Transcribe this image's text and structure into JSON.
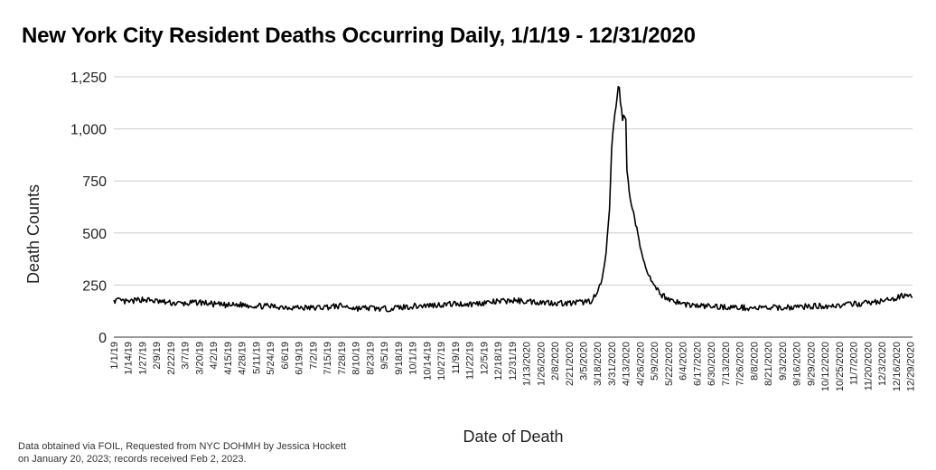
{
  "chart_data": {
    "type": "line",
    "title": "New York City Resident Deaths Occurring Daily, 1/1/19 - 12/31/2020",
    "xlabel": "Date of Death",
    "ylabel": "Death Counts",
    "ylim": [
      0,
      1250
    ],
    "yticks": [
      0,
      250,
      500,
      750,
      1000,
      1250
    ],
    "ytick_labels": [
      "0",
      "250",
      "500",
      "750",
      "1,000",
      "1,250"
    ],
    "grid": "horizontal",
    "legend": "none",
    "line_color": "#000000",
    "x_start": "1/1/19",
    "x_end": "12/31/2020",
    "x_tick_labels": [
      "1/1/19",
      "1/14/19",
      "1/27/19",
      "2/9/19",
      "2/22/19",
      "3/7/19",
      "3/20/19",
      "4/2/19",
      "4/15/19",
      "4/28/19",
      "5/11/19",
      "5/24/19",
      "6/6/19",
      "6/19/19",
      "7/2/19",
      "7/15/19",
      "7/28/19",
      "8/10/19",
      "8/23/19",
      "9/5/19",
      "9/18/19",
      "10/1/19",
      "10/14/19",
      "10/27/19",
      "11/9/19",
      "11/22/19",
      "12/5/19",
      "12/18/19",
      "12/31/19",
      "1/13/2020",
      "1/26/2020",
      "2/8/2020",
      "2/21/2020",
      "3/5/2020",
      "3/18/2020",
      "3/31/2020",
      "4/13/2020",
      "4/26/2020",
      "5/9/2020",
      "5/22/2020",
      "6/4/2020",
      "6/17/2020",
      "6/30/2020",
      "7/13/2020",
      "7/26/2020",
      "8/8/2020",
      "8/21/2020",
      "9/3/2020",
      "9/16/2020",
      "9/29/2020",
      "10/12/2020",
      "10/25/2020",
      "11/7/2020",
      "11/20/2020",
      "12/3/2020",
      "12/16/2020",
      "12/29/2020"
    ],
    "series": [
      {
        "x": [
          "1/1/19",
          "1/14/19",
          "1/27/19",
          "2/9/19",
          "2/22/19",
          "3/7/19",
          "3/20/19",
          "4/2/19",
          "4/15/19",
          "4/28/19",
          "5/11/19",
          "5/24/19",
          "6/6/19",
          "6/19/19",
          "7/2/19",
          "7/15/19",
          "7/28/19",
          "8/10/19",
          "8/23/19",
          "9/5/19",
          "9/18/19",
          "10/1/19",
          "10/14/19",
          "10/27/19",
          "11/9/19",
          "11/22/19",
          "12/5/19",
          "12/18/19",
          "12/31/19",
          "1/13/2020",
          "1/26/2020",
          "2/8/2020",
          "2/21/2020",
          "3/5/2020",
          "3/12/2020",
          "3/18/2020",
          "3/22/2020",
          "3/26/2020",
          "3/29/2020",
          "3/31/2020",
          "4/3/2020",
          "4/5/2020",
          "4/6/2020",
          "4/7/2020",
          "4/8/2020",
          "4/9/2020",
          "4/10/2020",
          "4/11/2020",
          "4/12/2020",
          "4/13/2020",
          "4/14/2020",
          "4/16/2020",
          "4/19/2020",
          "4/23/2020",
          "4/26/2020",
          "4/30/2020",
          "5/4/2020",
          "5/9/2020",
          "5/15/2020",
          "5/22/2020",
          "5/29/2020",
          "6/4/2020",
          "6/17/2020",
          "6/30/2020",
          "7/13/2020",
          "7/26/2020",
          "8/8/2020",
          "8/21/2020",
          "9/3/2020",
          "9/16/2020",
          "9/29/2020",
          "10/12/2020",
          "10/25/2020",
          "11/7/2020",
          "11/20/2020",
          "12/3/2020",
          "12/10/2020",
          "12/16/2020",
          "12/22/2020",
          "12/29/2020",
          "12/31/2020"
        ],
        "y": [
          178,
          168,
          182,
          172,
          164,
          160,
          168,
          158,
          152,
          156,
          150,
          148,
          145,
          142,
          140,
          145,
          150,
          138,
          140,
          135,
          142,
          148,
          152,
          156,
          160,
          158,
          165,
          170,
          176,
          172,
          168,
          165,
          162,
          168,
          175,
          210,
          270,
          400,
          620,
          900,
          1080,
          1150,
          1200,
          1190,
          1140,
          1080,
          1060,
          1050,
          1060,
          1040,
          800,
          700,
          620,
          520,
          430,
          360,
          290,
          240,
          205,
          185,
          170,
          160,
          150,
          148,
          145,
          142,
          140,
          140,
          142,
          145,
          148,
          150,
          152,
          158,
          165,
          172,
          178,
          185,
          200,
          210,
          190
        ]
      }
    ]
  },
  "source_note": "Data obtained via FOIL, Requested from NYC DOHMH by Jessica Hockett on January 20, 2023; records received Feb 2, 2023."
}
